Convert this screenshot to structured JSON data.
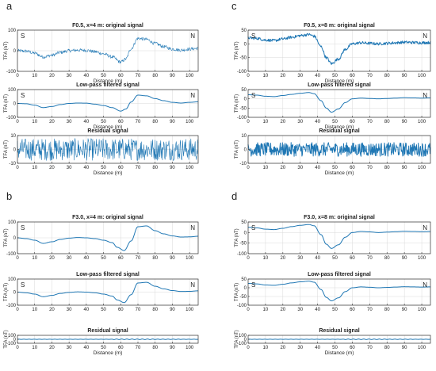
{
  "chart_data": [
    {
      "type": "line",
      "panel_letter": "a",
      "subplots": [
        {
          "title": "F0.5, x=4 m: original signal",
          "ylabel": "TFA (nT)",
          "xlabel": "Distance (m)",
          "xlim": [
            0,
            105
          ],
          "ylim": [
            -100,
            100
          ],
          "xticks": [
            0,
            10,
            20,
            30,
            40,
            50,
            60,
            70,
            80,
            90,
            100
          ],
          "yticks": [
            -100,
            0,
            100
          ],
          "corner_left": "S",
          "corner_right": "N",
          "grid": true,
          "noise_amplitude": 8,
          "series": [
            {
              "x": [
                0,
                5,
                10,
                15,
                20,
                25,
                30,
                35,
                40,
                45,
                50,
                55,
                60,
                63,
                66,
                70,
                75,
                80,
                85,
                90,
                95,
                100,
                105
              ],
              "y": [
                0,
                -2,
                -12,
                -30,
                -22,
                -8,
                0,
                3,
                2,
                -5,
                -15,
                -30,
                -55,
                -40,
                10,
                60,
                55,
                35,
                20,
                8,
                3,
                8,
                12
              ]
            }
          ]
        },
        {
          "title": "Low-pass filtered signal",
          "ylabel": "TFA (nT)",
          "xlabel": "Distance (m)",
          "xlim": [
            0,
            105
          ],
          "ylim": [
            -100,
            100
          ],
          "xticks": [
            0,
            10,
            20,
            30,
            40,
            50,
            60,
            70,
            80,
            90,
            100
          ],
          "yticks": [
            -100,
            0,
            100
          ],
          "corner_left": "S",
          "corner_right": "N",
          "grid": true,
          "noise_amplitude": 0,
          "series": [
            {
              "x": [
                0,
                5,
                10,
                15,
                20,
                25,
                30,
                35,
                40,
                45,
                50,
                55,
                60,
                63,
                66,
                70,
                75,
                80,
                85,
                90,
                95,
                100,
                105
              ],
              "y": [
                0,
                -2,
                -12,
                -30,
                -22,
                -8,
                0,
                3,
                2,
                -5,
                -15,
                -30,
                -55,
                -40,
                10,
                60,
                55,
                35,
                20,
                8,
                3,
                8,
                12
              ]
            }
          ]
        },
        {
          "title": "Residual signal",
          "ylabel": "TFA (nT)",
          "xlabel": "Distance (m)",
          "xlim": [
            0,
            105
          ],
          "ylim": [
            -10,
            10
          ],
          "xticks": [
            0,
            10,
            20,
            30,
            40,
            50,
            60,
            70,
            80,
            90,
            100
          ],
          "yticks": [
            -10,
            0,
            10
          ],
          "grid": true,
          "noise_amplitude": 8,
          "series": [
            {
              "x": [
                0,
                105
              ],
              "y": [
                0,
                0
              ]
            }
          ]
        }
      ]
    },
    {
      "type": "line",
      "panel_letter": "c",
      "subplots": [
        {
          "title": "F0.5, x=8 m: original signal",
          "ylabel": "TFA (nT)",
          "xlabel": "Distance (m)",
          "xlim": [
            0,
            105
          ],
          "ylim": [
            -100,
            50
          ],
          "xticks": [
            0,
            10,
            20,
            30,
            40,
            50,
            60,
            70,
            80,
            90,
            100
          ],
          "yticks": [
            -100,
            -50,
            0,
            50
          ],
          "corner_left": "S",
          "corner_right": "N",
          "grid": true,
          "noise_amplitude": 5,
          "series": [
            {
              "x": [
                0,
                5,
                10,
                15,
                20,
                25,
                30,
                35,
                38,
                42,
                45,
                48,
                52,
                56,
                60,
                65,
                70,
                75,
                80,
                85,
                90,
                95,
                100,
                105
              ],
              "y": [
                22,
                20,
                14,
                12,
                18,
                24,
                30,
                34,
                28,
                -10,
                -50,
                -72,
                -55,
                -20,
                0,
                4,
                2,
                0,
                2,
                4,
                6,
                5,
                4,
                5
              ]
            }
          ]
        },
        {
          "title": "Low-pass filtered signal",
          "ylabel": "TFA (nT)",
          "xlabel": "Distance (m)",
          "xlim": [
            0,
            105
          ],
          "ylim": [
            -100,
            50
          ],
          "xticks": [
            0,
            10,
            20,
            30,
            40,
            50,
            60,
            70,
            80,
            90,
            100
          ],
          "yticks": [
            -100,
            -50,
            0,
            50
          ],
          "corner_left": "S",
          "corner_right": "N",
          "grid": true,
          "noise_amplitude": 0,
          "series": [
            {
              "x": [
                0,
                5,
                10,
                15,
                20,
                25,
                30,
                35,
                38,
                42,
                45,
                48,
                52,
                56,
                60,
                65,
                70,
                75,
                80,
                85,
                90,
                95,
                100,
                105
              ],
              "y": [
                22,
                20,
                14,
                12,
                18,
                24,
                30,
                34,
                28,
                -10,
                -50,
                -72,
                -55,
                -20,
                0,
                4,
                2,
                0,
                2,
                4,
                6,
                5,
                4,
                5
              ]
            }
          ]
        },
        {
          "title": "Residual signal",
          "ylabel": "TFA (nT)",
          "xlabel": "Distance (m)",
          "xlim": [
            0,
            105
          ],
          "ylim": [
            -10,
            10
          ],
          "xticks": [
            0,
            10,
            20,
            30,
            40,
            50,
            60,
            70,
            80,
            90,
            100
          ],
          "yticks": [
            -10,
            0,
            10
          ],
          "grid": true,
          "noise_amplitude": 5,
          "series": [
            {
              "x": [
                0,
                105
              ],
              "y": [
                0,
                0
              ]
            }
          ]
        }
      ]
    },
    {
      "type": "line",
      "panel_letter": "b",
      "subplots": [
        {
          "title": "F3.0, x=4 m: original signal",
          "ylabel": "TFA (nT)",
          "xlabel": "",
          "xlim": [
            0,
            105
          ],
          "ylim": [
            -100,
            100
          ],
          "xticks": [
            0,
            10,
            20,
            30,
            40,
            50,
            60,
            70,
            80,
            90,
            100
          ],
          "yticks": [
            -100,
            0,
            100
          ],
          "corner_left": "S",
          "corner_right": "N",
          "grid": true,
          "noise_amplitude": 0,
          "series": [
            {
              "x": [
                0,
                5,
                10,
                15,
                20,
                25,
                30,
                35,
                40,
                45,
                50,
                55,
                58,
                62,
                66,
                70,
                75,
                80,
                85,
                90,
                95,
                100,
                105
              ],
              "y": [
                0,
                -5,
                -15,
                -35,
                -25,
                -10,
                -2,
                2,
                0,
                -5,
                -15,
                -30,
                -60,
                -80,
                -20,
                70,
                75,
                45,
                25,
                12,
                5,
                6,
                10
              ]
            }
          ]
        },
        {
          "title": "Low-pass filtered signal",
          "ylabel": "TFA (nT)",
          "xlabel": "",
          "xlim": [
            0,
            105
          ],
          "ylim": [
            -100,
            100
          ],
          "xticks": [
            0,
            10,
            20,
            30,
            40,
            50,
            60,
            70,
            80,
            90,
            100
          ],
          "yticks": [
            -100,
            0,
            100
          ],
          "corner_left": "S",
          "corner_right": "N",
          "grid": true,
          "noise_amplitude": 0,
          "series": [
            {
              "x": [
                0,
                5,
                10,
                15,
                20,
                25,
                30,
                35,
                40,
                45,
                50,
                55,
                58,
                62,
                66,
                70,
                75,
                80,
                85,
                90,
                95,
                100,
                105
              ],
              "y": [
                0,
                -5,
                -15,
                -35,
                -25,
                -10,
                -2,
                2,
                0,
                -5,
                -15,
                -30,
                -60,
                -80,
                -20,
                70,
                75,
                45,
                25,
                12,
                5,
                6,
                10
              ]
            }
          ]
        },
        {
          "title": "Residual signal",
          "ylabel": "TFA (nT)",
          "xlabel": "Distance (m)",
          "xlim": [
            0,
            105
          ],
          "ylim": [
            -100,
            100
          ],
          "xticks": [
            0,
            10,
            20,
            30,
            40,
            50,
            60,
            70,
            80,
            90,
            100
          ],
          "yticks": [
            -100,
            0,
            100
          ],
          "grid": true,
          "noise_amplitude": 0,
          "ripple_amplitude": 6,
          "series": [
            {
              "x": [
                0,
                105
              ],
              "y": [
                0,
                0
              ]
            }
          ]
        }
      ]
    },
    {
      "type": "line",
      "panel_letter": "d",
      "subplots": [
        {
          "title": "F3.0, x=8 m: original signal",
          "ylabel": "TFA (nT)",
          "xlabel": "",
          "xlim": [
            0,
            105
          ],
          "ylim": [
            -100,
            50
          ],
          "xticks": [
            0,
            10,
            20,
            30,
            40,
            50,
            60,
            70,
            80,
            90,
            100
          ],
          "yticks": [
            -100,
            -50,
            0,
            50
          ],
          "corner_left": "S",
          "corner_right": "N",
          "grid": true,
          "noise_amplitude": 0,
          "series": [
            {
              "x": [
                0,
                5,
                10,
                15,
                20,
                25,
                30,
                35,
                38,
                42,
                45,
                48,
                52,
                56,
                60,
                65,
                70,
                75,
                80,
                85,
                90,
                95,
                100,
                105
              ],
              "y": [
                25,
                22,
                16,
                14,
                20,
                28,
                34,
                38,
                32,
                -10,
                -55,
                -75,
                -58,
                -22,
                0,
                5,
                3,
                0,
                2,
                4,
                6,
                5,
                4,
                5
              ]
            }
          ]
        },
        {
          "title": "Low-pass filtered signal",
          "ylabel": "TFA (nT)",
          "xlabel": "",
          "xlim": [
            0,
            105
          ],
          "ylim": [
            -100,
            50
          ],
          "xticks": [
            0,
            10,
            20,
            30,
            40,
            50,
            60,
            70,
            80,
            90,
            100
          ],
          "yticks": [
            -100,
            -50,
            0,
            50
          ],
          "corner_left": "S",
          "corner_right": "N",
          "grid": true,
          "noise_amplitude": 0,
          "series": [
            {
              "x": [
                0,
                5,
                10,
                15,
                20,
                25,
                30,
                35,
                38,
                42,
                45,
                48,
                52,
                56,
                60,
                65,
                70,
                75,
                80,
                85,
                90,
                95,
                100,
                105
              ],
              "y": [
                25,
                22,
                16,
                14,
                20,
                28,
                34,
                38,
                32,
                -10,
                -55,
                -75,
                -58,
                -22,
                0,
                5,
                3,
                0,
                2,
                4,
                6,
                5,
                4,
                5
              ]
            }
          ]
        },
        {
          "title": "Residual signal",
          "ylabel": "TFA (nT)",
          "xlabel": "Distance (m)",
          "xlim": [
            0,
            105
          ],
          "ylim": [
            -100,
            100
          ],
          "xticks": [
            0,
            10,
            20,
            30,
            40,
            50,
            60,
            70,
            80,
            90,
            100
          ],
          "yticks": [
            -100,
            0,
            100
          ],
          "grid": true,
          "noise_amplitude": 0,
          "ripple_amplitude": 5,
          "series": [
            {
              "x": [
                0,
                105
              ],
              "y": [
                0,
                0
              ]
            }
          ]
        }
      ]
    }
  ],
  "colors": {
    "line": "#1f77b4",
    "grid": "#d9d9d9",
    "axis": "#333333",
    "text": "#222222"
  }
}
